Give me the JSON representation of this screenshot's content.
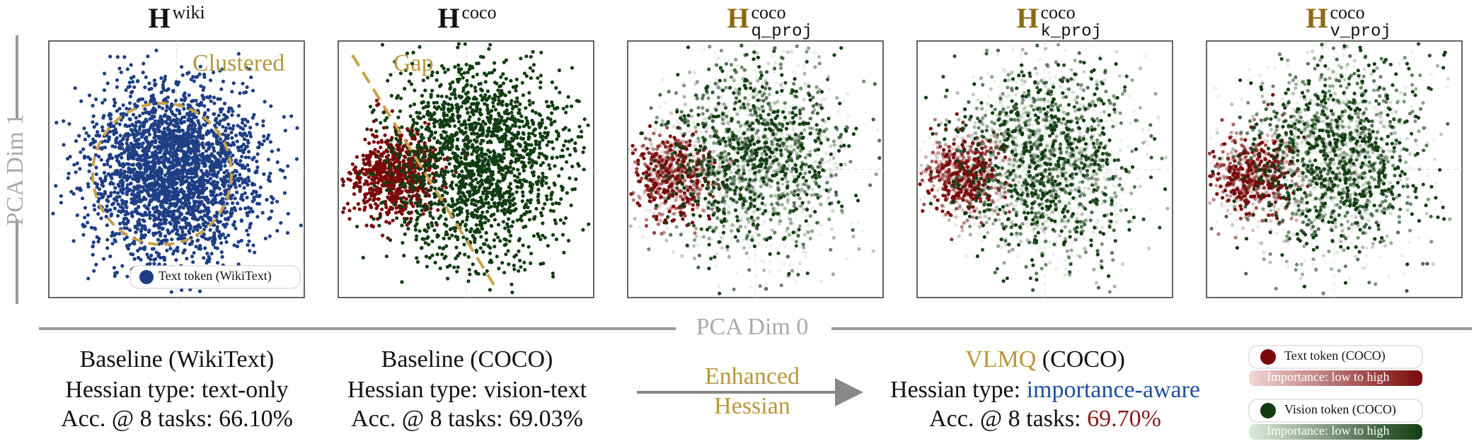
{
  "panels": [
    {
      "title": "H",
      "superscript": "wiki"
    },
    {
      "title": "H",
      "superscript": "coco"
    },
    {
      "title": "H",
      "superscript": "coco",
      "subscript": "q_proj"
    },
    {
      "title": "H",
      "superscript": "coco",
      "subscript": "k_proj"
    },
    {
      "title": "H",
      "superscript": "coco",
      "subscript": "v_proj"
    }
  ],
  "annotations": {
    "clustered": "Clustered",
    "gap": "Gap"
  },
  "panel_legend": "Text token (WikiText)",
  "y_axis_label": "PCA Dim 1",
  "x_axis_label": "PCA Dim 0",
  "captions": [
    {
      "lines": [
        [
          "Baseline (WikiText)"
        ],
        [
          "Hessian type: text-only"
        ],
        [
          "Acc. @ 8 tasks: 66.10%"
        ]
      ]
    },
    {
      "lines": [
        [
          "Baseline (COCO)"
        ],
        [
          "Hessian type: vision-text"
        ],
        [
          "Acc. @ 8 tasks: 69.03%"
        ]
      ]
    },
    {
      "lines": [
        [
          "VLMQ",
          " (COCO)"
        ],
        [
          "Hessian type: ",
          "importance-aware"
        ],
        [
          "Acc. @ 8 tasks: ",
          "69.70%"
        ]
      ]
    }
  ],
  "arrow_label": [
    "Enhanced",
    "Hessian"
  ],
  "legend": [
    {
      "label": "Text token (COCO)",
      "gradient": "Importance: low to high"
    },
    {
      "label": "Vision token (COCO)",
      "gradient": "Importance: low to high"
    }
  ]
}
